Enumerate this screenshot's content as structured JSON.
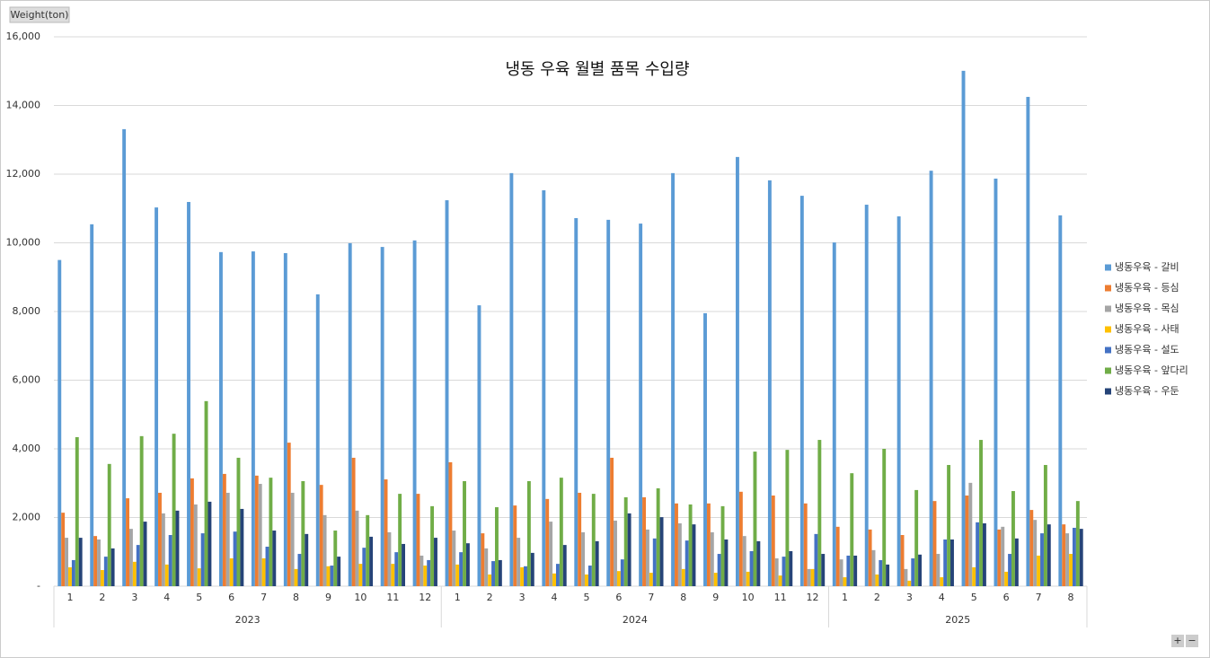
{
  "chart_data": {
    "type": "bar",
    "title": "냉동 우육 월별 품목 수입량",
    "y_axis_label": "Weight(ton)",
    "groups": [
      {
        "label": "2023",
        "categories": [
          "1",
          "2",
          "3",
          "4",
          "5",
          "6",
          "7",
          "8",
          "9",
          "10",
          "11",
          "12"
        ]
      },
      {
        "label": "2024",
        "categories": [
          "1",
          "2",
          "3",
          "4",
          "5",
          "6",
          "7",
          "8",
          "9",
          "10",
          "11",
          "12"
        ]
      },
      {
        "label": "2025",
        "categories": [
          "1",
          "2",
          "3",
          "4",
          "5",
          "6",
          "7",
          "8"
        ]
      }
    ],
    "ylim": [
      0,
      16000
    ],
    "yticks": [
      {
        "value": 0,
        "label": "-"
      },
      {
        "value": 2000,
        "label": "2,000"
      },
      {
        "value": 4000,
        "label": "4,000"
      },
      {
        "value": 6000,
        "label": "6,000"
      },
      {
        "value": 8000,
        "label": "8,000"
      },
      {
        "value": 10000,
        "label": "10,000"
      },
      {
        "value": 12000,
        "label": "12,000"
      },
      {
        "value": 14000,
        "label": "14,000"
      },
      {
        "value": 16000,
        "label": "16,000"
      }
    ],
    "grid": true,
    "legend": "right",
    "series": [
      {
        "name": "냉동우육 - 갈비",
        "color": "#5b9bd5",
        "values": [
          9500,
          10540,
          13310,
          11030,
          11190,
          9730,
          9750,
          9700,
          8500,
          9990,
          9880,
          10070,
          11240,
          8180,
          12030,
          11530,
          10720,
          10670,
          10560,
          12030,
          7950,
          12500,
          11820,
          11370,
          10010,
          11110,
          10770,
          12100,
          15010,
          11870,
          14250,
          10800
        ]
      },
      {
        "name": "냉동우육 - 등심",
        "color": "#ed7d31",
        "values": [
          2140,
          1460,
          2560,
          2720,
          3140,
          3270,
          3220,
          4180,
          2950,
          3740,
          3110,
          2690,
          3610,
          1540,
          2350,
          2540,
          2720,
          3740,
          2590,
          2410,
          2410,
          2750,
          2640,
          2410,
          1730,
          1650,
          1490,
          2480,
          2640,
          1650,
          2220,
          1800
        ]
      },
      {
        "name": "냉동우육 - 목심",
        "color": "#a5a5a5",
        "values": [
          1410,
          1360,
          1670,
          2120,
          2380,
          2720,
          2980,
          2720,
          2070,
          2200,
          1570,
          890,
          1620,
          1100,
          1410,
          1880,
          1570,
          1910,
          1650,
          1830,
          1570,
          1460,
          810,
          500,
          780,
          1050,
          500,
          940,
          3010,
          1730,
          1930,
          1540
        ]
      },
      {
        "name": "냉동우육 - 사태",
        "color": "#ffc000",
        "values": [
          550,
          470,
          710,
          630,
          520,
          810,
          810,
          500,
          580,
          650,
          650,
          600,
          630,
          340,
          550,
          370,
          340,
          440,
          390,
          500,
          390,
          420,
          310,
          500,
          260,
          340,
          160,
          260,
          550,
          420,
          890,
          940
        ]
      },
      {
        "name": "냉동우육 - 설도",
        "color": "#4472c4",
        "values": [
          760,
          860,
          1200,
          1490,
          1540,
          1590,
          1150,
          940,
          600,
          1120,
          990,
          760,
          990,
          730,
          580,
          650,
          600,
          780,
          1390,
          1330,
          940,
          1020,
          860,
          1520,
          890,
          760,
          810,
          1360,
          1860,
          940,
          1540,
          1700
        ]
      },
      {
        "name": "냉동우육 - 앞다리",
        "color": "#70ad47",
        "values": [
          4340,
          3560,
          4370,
          4440,
          5390,
          3740,
          3160,
          3060,
          1620,
          2070,
          2690,
          2330,
          3060,
          2300,
          3060,
          3160,
          2690,
          2590,
          2850,
          2380,
          2330,
          3920,
          3970,
          4260,
          3290,
          4000,
          2800,
          3530,
          4260,
          2770,
          3530,
          2480
        ]
      },
      {
        "name": "냉동우육 - 우둔",
        "color": "#264478",
        "values": [
          1410,
          1100,
          1880,
          2200,
          2460,
          2250,
          1620,
          1520,
          860,
          1440,
          1230,
          1410,
          1250,
          760,
          970,
          1200,
          1310,
          2120,
          2010,
          1800,
          1360,
          1310,
          1020,
          940,
          890,
          630,
          920,
          1360,
          1830,
          1390,
          1800,
          1670
        ]
      }
    ]
  },
  "ui": {
    "zoom_in": "+",
    "zoom_out": "−"
  }
}
